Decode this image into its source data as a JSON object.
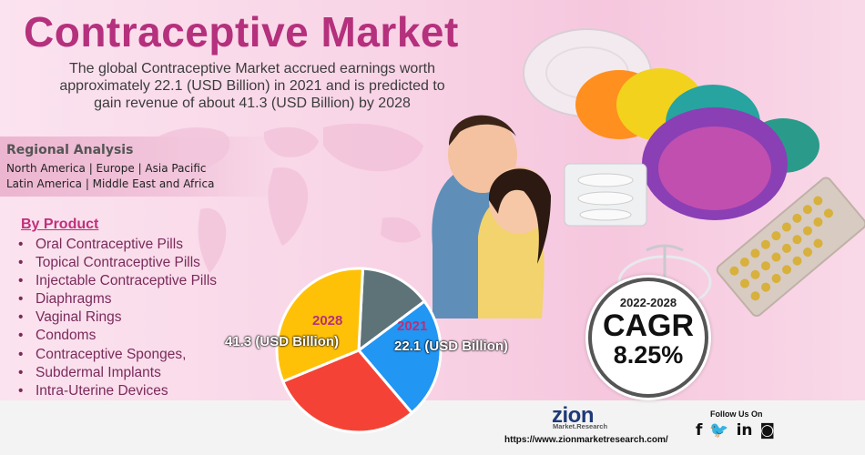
{
  "header": {
    "title": "Contraceptive Market",
    "subtitle": "The global Contraceptive Market accrued earnings worth approximately 22.1 (USD Billion) in 2021 and is predicted to gain revenue of about 41.3 (USD Billion) by 2028"
  },
  "regional": {
    "title": "Regional Analysis",
    "line1": "North America | Europe | Asia Pacific",
    "line2": "Latin America | Middle East and Africa"
  },
  "products": {
    "title": "By Product",
    "bullet": "•",
    "items": [
      "Oral Contraceptive Pills",
      "Topical Contraceptive Pills",
      "Injectable Contraceptive Pills",
      "Diaphragms",
      "Vaginal Rings",
      "Condoms",
      "Contraceptive Sponges,",
      "Subdermal Implants",
      "Intra-Uterine Devices"
    ]
  },
  "chart_data": {
    "type": "pie",
    "slices": [
      {
        "color": "#5e7378",
        "fraction": 0.14
      },
      {
        "color": "#2196f3",
        "fraction": 0.24
      },
      {
        "color": "#f44336",
        "fraction": 0.3
      },
      {
        "color": "#ffc107",
        "fraction": 0.32
      }
    ],
    "labels": {
      "year_2028": "2028",
      "value_2028": "41.3 (USD Billion)",
      "year_2021": "2021",
      "value_2021": "22.1 (USD Billion)"
    }
  },
  "cagr": {
    "period": "2022-2028",
    "label": "CAGR",
    "value": "8.25%"
  },
  "footer": {
    "logo_main": "zion",
    "logo_sub": "Market.Research",
    "url": "https://www.zionmarketresearch.com/",
    "follow": "Follow Us On",
    "social_icons": [
      "facebook-icon",
      "twitter-icon",
      "linkedin-icon",
      "instagram-icon"
    ],
    "social_glyphs": [
      "f",
      "🐦",
      "in",
      "◙"
    ]
  },
  "colors": {
    "title": "#b5307d",
    "accent_blue": "#1e3a78"
  }
}
